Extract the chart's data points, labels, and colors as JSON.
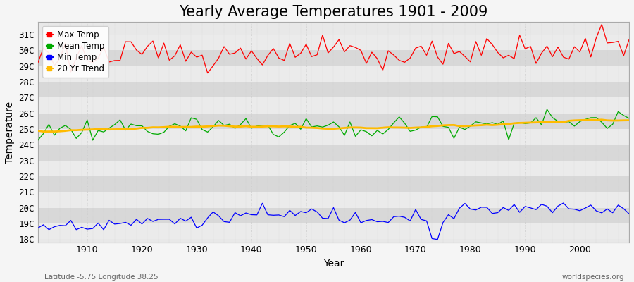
{
  "title": "Yearly Average Temperatures 1901 - 2009",
  "xlabel": "Year",
  "ylabel": "Temperature",
  "start_year": 1901,
  "end_year": 2009,
  "yticks": [
    "18C",
    "19C",
    "20C",
    "21C",
    "22C",
    "23C",
    "24C",
    "25C",
    "26C",
    "27C",
    "28C",
    "29C",
    "30C",
    "31C"
  ],
  "ytick_vals": [
    18,
    19,
    20,
    21,
    22,
    23,
    24,
    25,
    26,
    27,
    28,
    29,
    30,
    31
  ],
  "ylim": [
    17.8,
    31.8
  ],
  "xlim": [
    1901,
    2009
  ],
  "background_color": "#f5f5f5",
  "plot_bg_color": "#e8e8e8",
  "band_light": "#ebebeb",
  "band_dark": "#d8d8d8",
  "grid_color": "#ffffff",
  "colors": {
    "max": "#ff0000",
    "mean": "#00aa00",
    "min": "#0000ff",
    "trend": "#ffbb00"
  },
  "footer_left": "Latitude -5.75 Longitude 38.25",
  "footer_right": "worldspecies.org",
  "title_fontsize": 15,
  "axis_fontsize": 10,
  "tick_fontsize": 9
}
